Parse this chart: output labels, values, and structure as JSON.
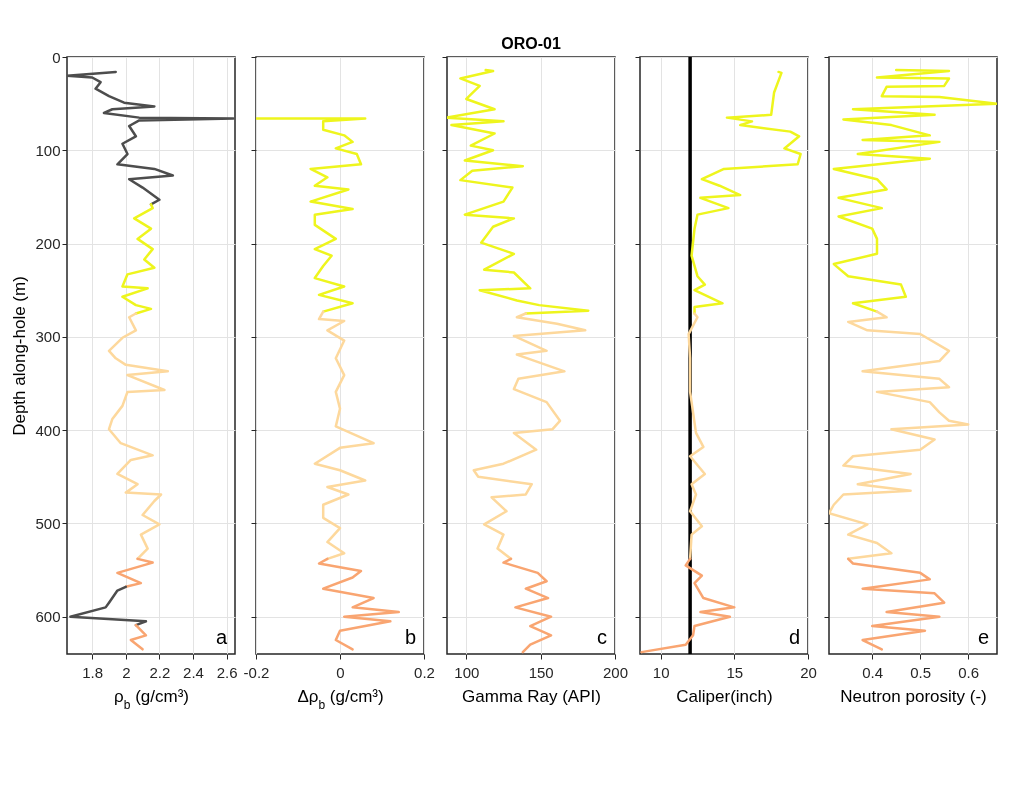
{
  "chart_data": [
    {
      "type": "line",
      "xlabel": "ρ$_{b}$ (g/cm³)",
      "ylabel": "Depth along-hole (m)",
      "xlim": [
        1.65,
        2.65
      ],
      "xticks": [
        1.8,
        {
          "value": 2,
          "label": "2"
        },
        2.2,
        2.4,
        2.6
      ],
      "ylim": [
        640,
        0
      ],
      "yticks": [
        0,
        100,
        200,
        300,
        400,
        500,
        600
      ],
      "grid": true,
      "annotations": [
        "a"
      ],
      "series": [
        {
          "color": "#4d4d4d",
          "x": [
            1.94,
            1.65,
            1.8,
            1.85,
            1.82,
            1.9,
            1.99,
            2.17,
            1.92,
            1.87,
            2.08,
            2.64,
            2.08,
            2.02,
            2.06,
            1.98,
            2.01,
            1.95,
            2.17,
            2.28,
            2.02,
            2.1,
            2.2,
            2.15
          ],
          "values": [
            16,
            20,
            22,
            27,
            34,
            42,
            49,
            53,
            56,
            60,
            65,
            66,
            68,
            74,
            85,
            93,
            104,
            115,
            120,
            127,
            131,
            140,
            153,
            158
          ]
        },
        {
          "color": "#eef51d",
          "x": [
            2.15,
            2.16,
            2.05,
            2.15,
            2.07,
            2.16,
            2.11,
            2.17,
            2.01,
            1.98,
            2.13,
            1.98,
            2.06,
            2.15,
            2.06
          ],
          "values": [
            158,
            162,
            173,
            184,
            195,
            206,
            217,
            226,
            233,
            246,
            248,
            257,
            266,
            270,
            275
          ]
        },
        {
          "color": "#fdd89c",
          "x": [
            2.06,
            2.02,
            2.06,
            1.98,
            1.9,
            1.94,
            2.0,
            2.25,
            2.01,
            2.23,
            2.01,
            1.98,
            1.92,
            1.9,
            1.97,
            2.16,
            2.03,
            1.95,
            2.07,
            2.0,
            2.21,
            2.17,
            2.1,
            2.2,
            2.09,
            2.13,
            2.07
          ],
          "values": [
            275,
            279,
            293,
            301,
            315,
            323,
            330,
            337,
            341,
            357,
            359,
            374,
            388,
            399,
            414,
            427,
            432,
            447,
            458,
            467,
            469,
            476,
            491,
            501,
            512,
            527,
            538
          ]
        },
        {
          "color": "#f9a571",
          "x": [
            2.07,
            2.16,
            1.95,
            2.09,
            2.0
          ],
          "values": [
            538,
            542,
            553,
            564,
            568
          ]
        },
        {
          "color": "#4d4d4d",
          "x": [
            2.0,
            1.95,
            1.9,
            1.88,
            1.67,
            2.12,
            2.06
          ],
          "values": [
            568,
            572,
            585,
            590,
            600,
            605,
            609
          ]
        },
        {
          "color": "#f9a571",
          "x": [
            2.06,
            2.12,
            2.03,
            2.1
          ],
          "values": [
            609,
            620,
            625,
            635
          ]
        }
      ]
    },
    {
      "type": "line",
      "xlabel": "Δρ$_{b}$ (g/cm³)",
      "xlim": [
        -0.2,
        0.2
      ],
      "xticks": [
        -0.2,
        {
          "value": 0,
          "label": "0"
        },
        0.2
      ],
      "ylim": [
        640,
        0
      ],
      "yticks": [
        0,
        100,
        200,
        300,
        400,
        500,
        600
      ],
      "tick_labels": "x",
      "grid": true,
      "annotations": [
        "b"
      ],
      "series": [
        {
          "color": "#eef51d",
          "x": [
            -0.2,
            0.06,
            -0.04,
            -0.04,
            0.01,
            0.03,
            -0.01,
            0.04,
            0.05,
            -0.07,
            -0.03,
            -0.06,
            0.02,
            -0.07,
            0.03,
            -0.06,
            -0.06,
            -0.01,
            -0.06,
            -0.02,
            -0.04,
            -0.06,
            0.01,
            -0.05,
            0.03,
            -0.04
          ],
          "values": [
            66,
            66,
            69,
            78,
            84,
            91,
            98,
            104,
            115,
            120,
            129,
            138,
            142,
            155,
            163,
            169,
            180,
            195,
            206,
            213,
            224,
            237,
            246,
            255,
            264,
            273
          ]
        },
        {
          "color": "#fdd89c",
          "x": [
            -0.04,
            -0.05,
            0.01,
            -0.03,
            0.01,
            -0.01,
            0.01,
            -0.01,
            0.0,
            -0.01,
            0.08,
            0.0,
            -0.06,
            0.0,
            0.06,
            -0.03,
            0.02,
            -0.04,
            -0.04,
            0.0,
            -0.03,
            0.01,
            -0.03
          ],
          "values": [
            273,
            281,
            283,
            293,
            304,
            323,
            341,
            359,
            377,
            396,
            414,
            419,
            436,
            443,
            454,
            461,
            469,
            480,
            494,
            505,
            520,
            532,
            538
          ]
        },
        {
          "color": "#f9a571",
          "x": [
            -0.03,
            -0.05,
            0.05,
            0.03,
            -0.04,
            0.08,
            0.03,
            0.14,
            0.01,
            0.12,
            0,
            -0.01,
            0.03
          ],
          "values": [
            538,
            543,
            551,
            558,
            570,
            580,
            590,
            595,
            600,
            605,
            615,
            625,
            635
          ]
        }
      ]
    },
    {
      "type": "line",
      "title": "ORO-01",
      "xlabel": "Gamma Ray (API)",
      "xlim": [
        87,
        200
      ],
      "xticks": [
        100,
        150,
        200
      ],
      "ylim": [
        640,
        0
      ],
      "yticks": [
        0,
        100,
        200,
        300,
        400,
        500,
        600
      ],
      "tick_labels": "x",
      "grid": true,
      "annotations": [
        "c"
      ],
      "series": [
        {
          "color": "#eef51d",
          "x": [
            113,
            118,
            96,
            109,
            100,
            119,
            87,
            125,
            90,
            119,
            103,
            118,
            99,
            138,
            104,
            96,
            131,
            125,
            99,
            132,
            118,
            110,
            132,
            112,
            132,
            143,
            109,
            134,
            149,
            182,
            140
          ],
          "values": [
            14,
            15,
            23,
            31,
            45,
            56,
            65,
            69,
            73,
            82,
            95,
            100,
            111,
            117,
            122,
            132,
            140,
            155,
            169,
            173,
            182,
            199,
            211,
            228,
            231,
            248,
            250,
            261,
            266,
            272,
            275
          ]
        },
        {
          "color": "#fdd89c",
          "x": [
            140,
            134,
            161,
            180,
            132,
            154,
            134,
            166,
            135,
            132,
            154,
            163,
            158,
            132,
            147,
            125,
            105,
            108,
            144,
            140,
            117,
            127,
            112,
            125,
            121,
            130
          ],
          "values": [
            275,
            279,
            286,
            293,
            299,
            315,
            319,
            337,
            345,
            356,
            370,
            390,
            399,
            403,
            421,
            436,
            443,
            450,
            458,
            469,
            472,
            487,
            501,
            512,
            527,
            538
          ]
        },
        {
          "color": "#f9a571",
          "x": [
            130,
            125,
            148,
            154,
            140,
            155,
            133,
            157,
            143,
            157,
            143,
            138
          ],
          "values": [
            538,
            542,
            553,
            562,
            570,
            580,
            590,
            600,
            610,
            620,
            630,
            638
          ]
        }
      ]
    },
    {
      "type": "line",
      "xlabel": "Caliper(inch)",
      "xlim": [
        8.6,
        20
      ],
      "xticks": [
        10,
        15,
        20
      ],
      "ylim": [
        640,
        0
      ],
      "yticks": [
        0,
        100,
        200,
        300,
        400,
        500,
        600
      ],
      "tick_labels": "x",
      "grid": true,
      "annotations": [
        "d"
      ],
      "ref_lines": [
        {
          "axis": "x",
          "value": 12,
          "color": "#000000"
        }
      ],
      "series": [
        {
          "color": "#eef51d",
          "x": [
            18.0,
            18.2,
            17.7,
            17.5,
            14.5,
            16.2,
            15.4,
            18.8,
            19.4,
            18.4,
            19.5,
            19.3,
            14.3,
            12.8,
            14.0,
            15.4,
            12.7,
            14.6,
            12.5,
            12.3,
            12.1,
            12.5,
            13.0,
            12.3,
            14.2,
            12.3,
            12.3
          ],
          "values": [
            16,
            17,
            38,
            62,
            65,
            69,
            73,
            80,
            85,
            98,
            104,
            115,
            120,
            131,
            138,
            148,
            151,
            162,
            169,
            184,
            213,
            235,
            244,
            250,
            264,
            268,
            275
          ]
        },
        {
          "color": "#fdd89c",
          "x": [
            12.3,
            12.5,
            11.9,
            12.0,
            12.0,
            12.4,
            12.9,
            12.0,
            13.0,
            12.1,
            12.4,
            12.0,
            12.8,
            12.1,
            12.0
          ],
          "values": [
            275,
            279,
            297,
            323,
            359,
            403,
            418,
            428,
            447,
            458,
            469,
            487,
            503,
            512,
            538
          ]
        },
        {
          "color": "#f9a571",
          "x": [
            12.0,
            11.7,
            12.8,
            12.3,
            12.9,
            15.0,
            12.7,
            14.7,
            12.3,
            12.2,
            11.7,
            8.7
          ],
          "values": [
            538,
            545,
            556,
            564,
            580,
            590,
            595,
            600,
            610,
            620,
            630,
            638
          ]
        }
      ]
    },
    {
      "type": "line",
      "xlabel": "Neutron porosity (-)",
      "xlim": [
        0.31,
        0.66
      ],
      "xticks": [
        0.4,
        0.5,
        0.6
      ],
      "ylim": [
        640,
        0
      ],
      "yticks": [
        0,
        100,
        200,
        300,
        400,
        500,
        600
      ],
      "tick_labels": "x",
      "grid": true,
      "annotations": [
        "e"
      ],
      "series": [
        {
          "color": "#eef51d",
          "x": [
            0.45,
            0.56,
            0.41,
            0.56,
            0.55,
            0.43,
            0.42,
            0.54,
            0.66,
            0.36,
            0.53,
            0.34,
            0.44,
            0.52,
            0.38,
            0.54,
            0.37,
            0.52,
            0.32,
            0.41,
            0.43,
            0.33,
            0.42,
            0.33,
            0.4,
            0.41,
            0.41,
            0.32,
            0.35,
            0.46,
            0.47,
            0.36,
            0.41
          ],
          "values": [
            14,
            15,
            22,
            23,
            31,
            32,
            42,
            43,
            50,
            56,
            62,
            67,
            73,
            84,
            89,
            91,
            104,
            109,
            120,
            131,
            142,
            151,
            162,
            171,
            184,
            195,
            211,
            222,
            235,
            244,
            257,
            264,
            273
          ]
        },
        {
          "color": "#fdd89c",
          "x": [
            0.41,
            0.43,
            0.35,
            0.39,
            0.5,
            0.56,
            0.54,
            0.38,
            0.54,
            0.56,
            0.41,
            0.52,
            0.54,
            0.56,
            0.6,
            0.44,
            0.53,
            0.5,
            0.36,
            0.34,
            0.48,
            0.37,
            0.48,
            0.34,
            0.32,
            0.31,
            0.39,
            0.35,
            0.41,
            0.44,
            0.35
          ],
          "values": [
            273,
            279,
            284,
            293,
            297,
            315,
            326,
            337,
            345,
            354,
            359,
            370,
            381,
            390,
            394,
            399,
            410,
            421,
            428,
            438,
            447,
            458,
            465,
            469,
            480,
            489,
            501,
            512,
            521,
            532,
            538
          ]
        },
        {
          "color": "#f9a571",
          "x": [
            0.35,
            0.36,
            0.5,
            0.52,
            0.38,
            0.53,
            0.55,
            0.43,
            0.54,
            0.4,
            0.51,
            0.38,
            0.42
          ],
          "values": [
            538,
            543,
            553,
            560,
            570,
            575,
            585,
            595,
            600,
            610,
            615,
            625,
            635
          ]
        }
      ]
    }
  ]
}
